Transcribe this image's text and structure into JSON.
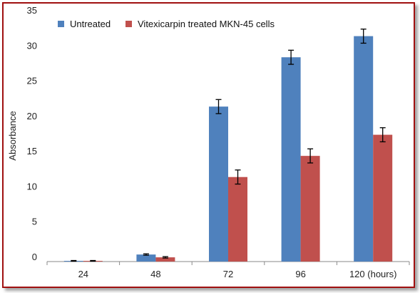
{
  "chart_data": {
    "type": "bar",
    "categories": [
      "24",
      "48",
      "72",
      "96",
      "120 (hours)"
    ],
    "series": [
      {
        "name": "Untreated",
        "color": "#4f81bd",
        "values": [
          0.1,
          1.0,
          22.0,
          29.0,
          32.0
        ],
        "errors": [
          0.05,
          0.1,
          1.0,
          1.0,
          1.0
        ]
      },
      {
        "name": "Vitexicarpin treated MKN-45 cells",
        "color": "#c0504d",
        "values": [
          0.1,
          0.6,
          12.0,
          15.0,
          18.0
        ],
        "errors": [
          0.05,
          0.1,
          1.0,
          1.0,
          1.0
        ]
      }
    ],
    "ylabel": "Absorbance",
    "xlabel": "",
    "ylim": [
      0,
      35
    ],
    "yticks": [
      0,
      5,
      10,
      15,
      20,
      25,
      30,
      35
    ],
    "grid": false,
    "legend_position": "top-left",
    "frame_color": "#a01010"
  }
}
